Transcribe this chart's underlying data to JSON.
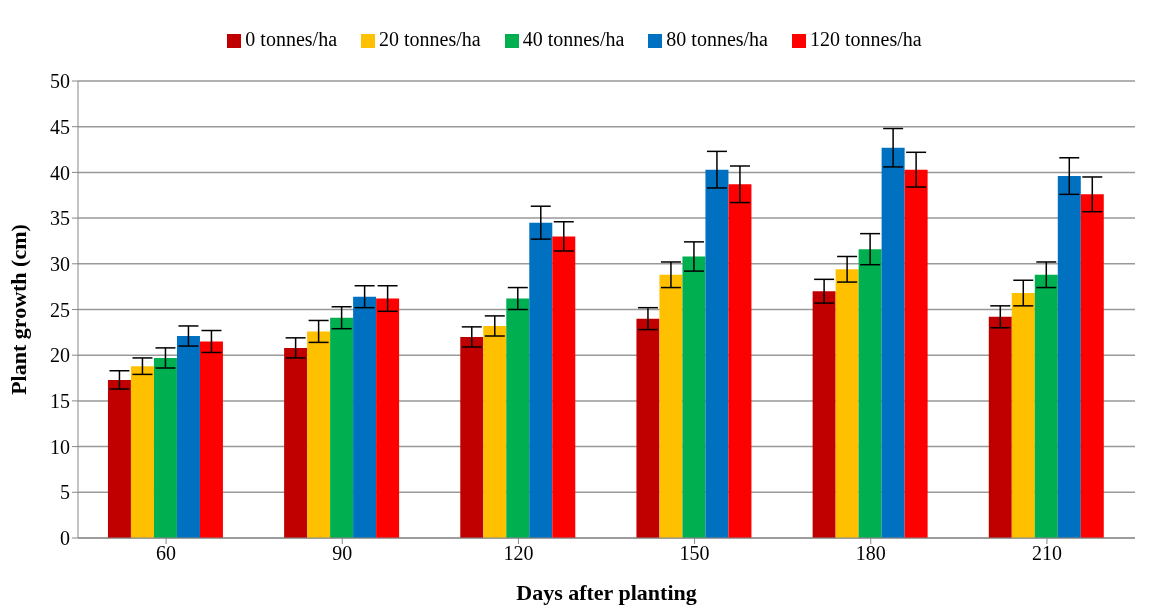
{
  "chart_data": {
    "type": "bar",
    "xlabel": "Days after planting",
    "ylabel": "Plant growth (cm)",
    "categories": [
      "60",
      "90",
      "120",
      "150",
      "180",
      "210"
    ],
    "series": [
      {
        "name": "0 tonnes/ha",
        "color": "#c00000",
        "values": [
          17.3,
          20.8,
          22.0,
          24.0,
          27.0,
          24.2
        ],
        "errors": [
          1.0,
          1.1,
          1.1,
          1.2,
          1.3,
          1.2
        ]
      },
      {
        "name": "20 tonnes/ha",
        "color": "#ffc000",
        "values": [
          18.8,
          22.6,
          23.2,
          28.8,
          29.4,
          26.8
        ],
        "errors": [
          0.9,
          1.2,
          1.1,
          1.4,
          1.4,
          1.4
        ]
      },
      {
        "name": "40 tonnes/ha",
        "color": "#00b050",
        "values": [
          19.7,
          24.1,
          26.2,
          30.8,
          31.6,
          28.8
        ],
        "errors": [
          1.1,
          1.2,
          1.2,
          1.6,
          1.7,
          1.4
        ]
      },
      {
        "name": "80 tonnes/ha",
        "color": "#0070c0",
        "values": [
          22.1,
          26.4,
          34.5,
          40.3,
          42.7,
          39.6
        ],
        "errors": [
          1.1,
          1.2,
          1.8,
          2.0,
          2.1,
          2.0
        ]
      },
      {
        "name": "120 tonnes/ha",
        "color": "#ff0000",
        "values": [
          21.5,
          26.2,
          33.0,
          38.7,
          40.3,
          37.6
        ],
        "errors": [
          1.2,
          1.4,
          1.6,
          2.0,
          1.9,
          1.9
        ]
      }
    ],
    "ylim": [
      0,
      50
    ],
    "yticks": [
      0,
      5,
      10,
      15,
      20,
      25,
      30,
      35,
      40,
      45,
      50
    ],
    "grid": "y",
    "legend": "top"
  }
}
